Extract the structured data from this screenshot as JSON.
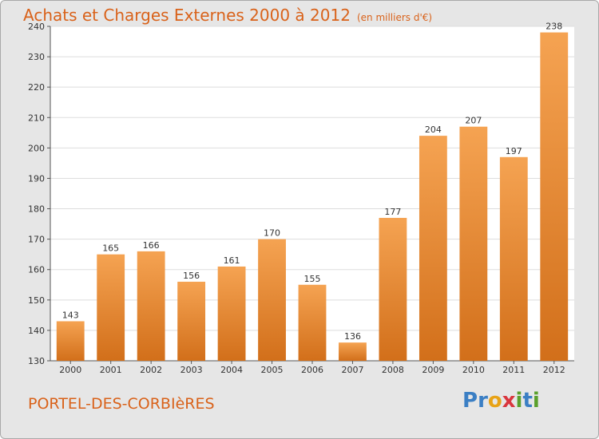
{
  "header": {
    "title": "Achats et Charges Externes 2000 à 2012",
    "unit": "(en milliers d'€)"
  },
  "footer": {
    "location": "PORTEL-DES-CORBIèRES",
    "brand": "Proxiti",
    "brand_letters": [
      {
        "ch": "P",
        "color": "#3b7fc4"
      },
      {
        "ch": "r",
        "color": "#3b7fc4"
      },
      {
        "ch": "o",
        "color": "#e8a317"
      },
      {
        "ch": "x",
        "color": "#d9363e"
      },
      {
        "ch": "i",
        "color": "#5aa02c"
      },
      {
        "ch": "t",
        "color": "#3b7fc4"
      },
      {
        "ch": "i",
        "color": "#5aa02c"
      }
    ]
  },
  "colors": {
    "bar_light": "#f5a352",
    "bar_dark": "#d26f1a",
    "accent": "#d9621a",
    "plot_bg": "#ffffff",
    "grid": "#dddddd"
  },
  "chart_data": {
    "type": "bar",
    "title": "Achats et Charges Externes 2000 à 2012",
    "subtitle": "(en milliers d'€)",
    "categories": [
      "2000",
      "2001",
      "2002",
      "2003",
      "2004",
      "2005",
      "2006",
      "2007",
      "2008",
      "2009",
      "2010",
      "2011",
      "2012"
    ],
    "values": [
      143,
      165,
      166,
      156,
      161,
      170,
      155,
      136,
      177,
      204,
      207,
      197,
      238
    ],
    "ylim": [
      130,
      240
    ],
    "yticks": [
      130,
      140,
      150,
      160,
      170,
      180,
      190,
      200,
      210,
      220,
      230,
      240
    ],
    "grid": true,
    "data_labels": true
  }
}
